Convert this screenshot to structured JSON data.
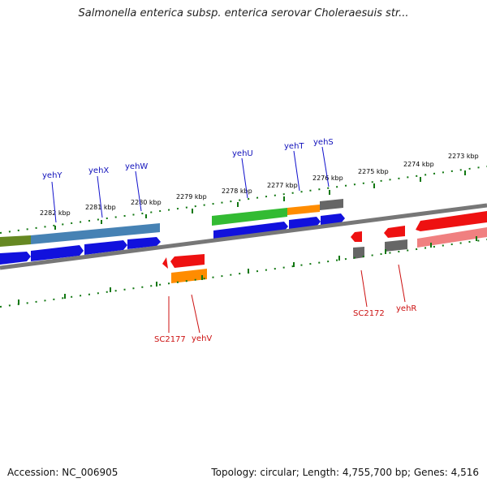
{
  "title": "Salmonella enterica subsp. enterica serovar Choleraesuis str...",
  "footer": {
    "accession": "Accession: NC_006905",
    "summary": "Topology: circular; Length: 4,755,700 bp; Genes: 4,516"
  },
  "kbp_labels": [
    "2282 kbp",
    "2281 kbp",
    "2280 kbp",
    "2279 kbp",
    "2278 kbp",
    "2277 kbp",
    "2276 kbp",
    "2275 kbp",
    "2274 kbp",
    "2273 kbp"
  ],
  "top_genes": [
    "yehY",
    "yehX",
    "yehW",
    "yehU",
    "yehT",
    "yehS"
  ],
  "bottom_genes": [
    "SC2177",
    "yehV",
    "SC2172",
    "yehR"
  ],
  "colors": {
    "blue": "#1111dd",
    "red": "#ee1111",
    "orange": "#ff8c00",
    "green": "#33bb33",
    "olive": "#668822",
    "steel": "#4682b4",
    "grey": "#666666",
    "salmon": "#f08080",
    "tick": "#117711",
    "backbone": "#777777"
  }
}
